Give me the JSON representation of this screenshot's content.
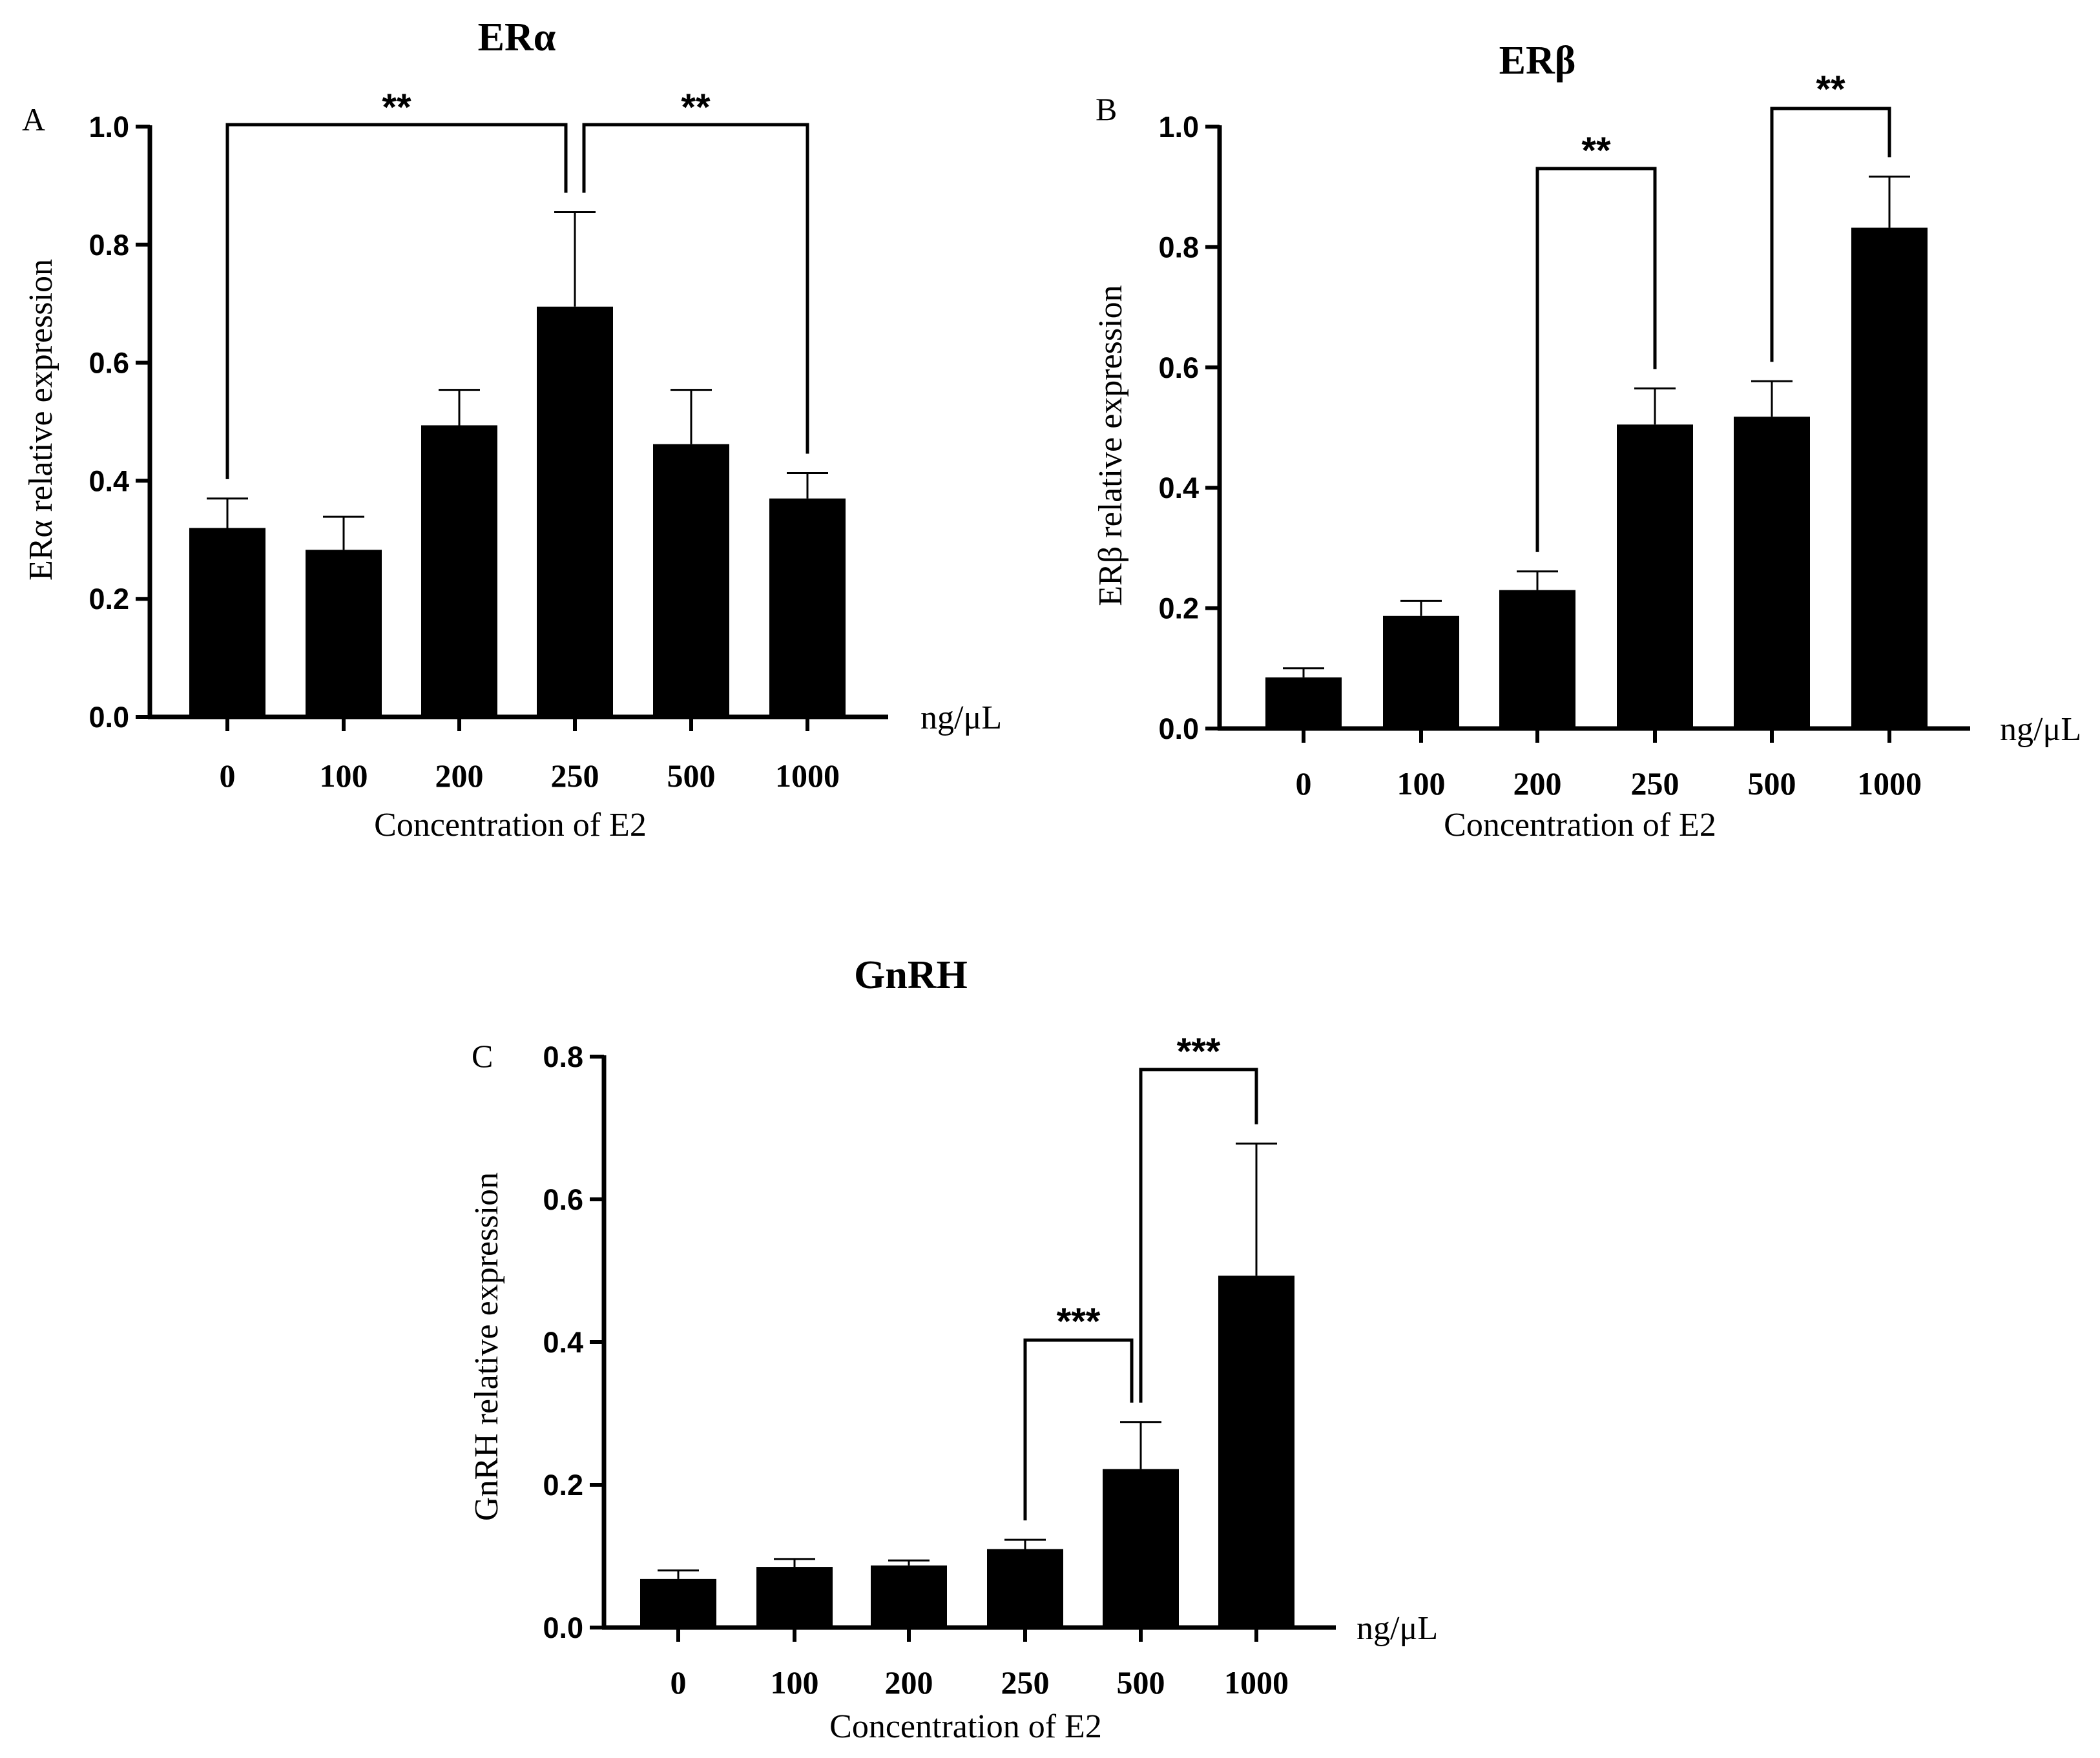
{
  "chart_data": [
    {
      "type": "bar",
      "panel": "A",
      "title": "ERα",
      "categories": [
        "0",
        "100",
        "200",
        "250",
        "500",
        "1000"
      ],
      "values": [
        0.32,
        0.283,
        0.494,
        0.695,
        0.462,
        0.37
      ],
      "errors": [
        0.05,
        0.056,
        0.06,
        0.16,
        0.092,
        0.043
      ],
      "xlabel": "Concentration of E2",
      "ylabel": "ERα relative expression",
      "unit": "ng/μL",
      "ylim": [
        0,
        1.0
      ],
      "yticks": [
        "0.0",
        "0.2",
        "0.4",
        "0.6",
        "0.8",
        "1.0"
      ],
      "significance": [
        {
          "from": 0,
          "to": 3,
          "label": "**"
        },
        {
          "from": 3,
          "to": 5,
          "label": "**"
        }
      ]
    },
    {
      "type": "bar",
      "panel": "B",
      "title": "ERβ",
      "categories": [
        "0",
        "100",
        "200",
        "250",
        "500",
        "1000"
      ],
      "values": [
        0.085,
        0.187,
        0.23,
        0.505,
        0.518,
        0.832
      ],
      "errors": [
        0.015,
        0.025,
        0.031,
        0.06,
        0.059,
        0.085
      ],
      "xlabel": "Concentration of E2",
      "ylabel": "ERβ relative expression",
      "unit": "ng/μL",
      "ylim": [
        0,
        1.0
      ],
      "yticks": [
        "0.0",
        "0.2",
        "0.4",
        "0.6",
        "0.8",
        "1.0"
      ],
      "significance": [
        {
          "from": 2,
          "to": 3,
          "label": "**"
        },
        {
          "from": 4,
          "to": 5,
          "label": "**"
        }
      ]
    },
    {
      "type": "bar",
      "panel": "C",
      "title": "GnRH",
      "categories": [
        "0",
        "100",
        "200",
        "250",
        "500",
        "1000"
      ],
      "values": [
        0.068,
        0.085,
        0.087,
        0.11,
        0.222,
        0.493
      ],
      "errors": [
        0.012,
        0.011,
        0.007,
        0.013,
        0.066,
        0.185
      ],
      "xlabel": "Concentration of E2",
      "ylabel": "GnRH relative expression",
      "unit": "ng/μL",
      "ylim": [
        0,
        0.8
      ],
      "yticks": [
        "0.0",
        "0.2",
        "0.4",
        "0.6",
        "0.8"
      ],
      "significance": [
        {
          "from": 3,
          "to": 4,
          "label": "***"
        },
        {
          "from": 4,
          "to": 5,
          "label": "***"
        }
      ]
    }
  ]
}
